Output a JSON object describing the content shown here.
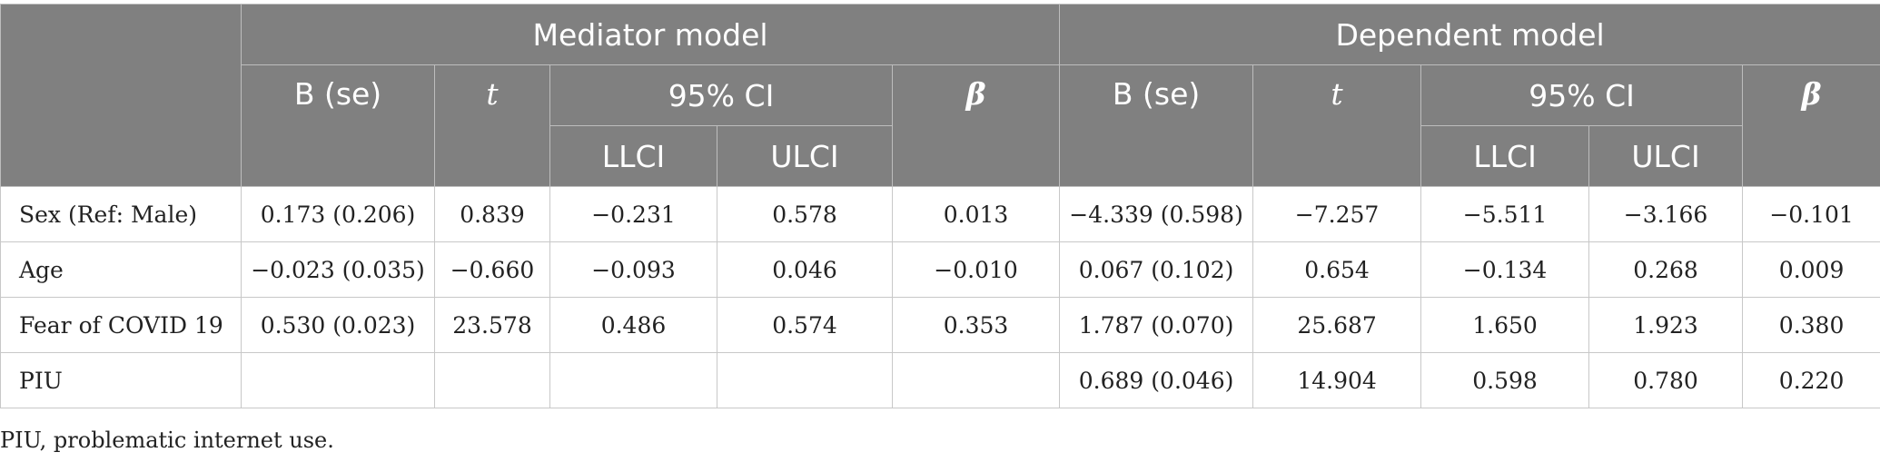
{
  "table": {
    "groups": {
      "mediator": "Mediator model",
      "dependent": "Dependent model"
    },
    "subheaders": {
      "b_se": "B (se)",
      "t": "t",
      "ci": "95% CI",
      "beta": "β",
      "llci": "LLCI",
      "ulci": "ULCI"
    },
    "rows": [
      {
        "label": "Sex (Ref: Male)",
        "med": [
          "0.173 (0.206)",
          "0.839",
          "−0.231",
          "0.578",
          "0.013"
        ],
        "dep": [
          "−4.339 (0.598)",
          "−7.257",
          "−5.511",
          "−3.166",
          "−0.101"
        ]
      },
      {
        "label": "Age",
        "med": [
          "−0.023 (0.035)",
          "−0.660",
          "−0.093",
          "0.046",
          "−0.010"
        ],
        "dep": [
          "0.067 (0.102)",
          "0.654",
          "−0.134",
          "0.268",
          "0.009"
        ]
      },
      {
        "label": "Fear of COVID 19",
        "med": [
          "0.530 (0.023)",
          "23.578",
          "0.486",
          "0.574",
          "0.353"
        ],
        "dep": [
          "1.787 (0.070)",
          "25.687",
          "1.650",
          "1.923",
          "0.380"
        ]
      },
      {
        "label": "PIU",
        "med": [
          "",
          "",
          "",
          "",
          ""
        ],
        "dep": [
          "0.689 (0.046)",
          "14.904",
          "0.598",
          "0.780",
          "0.220"
        ]
      }
    ]
  },
  "footnote": "PIU, problematic internet use."
}
